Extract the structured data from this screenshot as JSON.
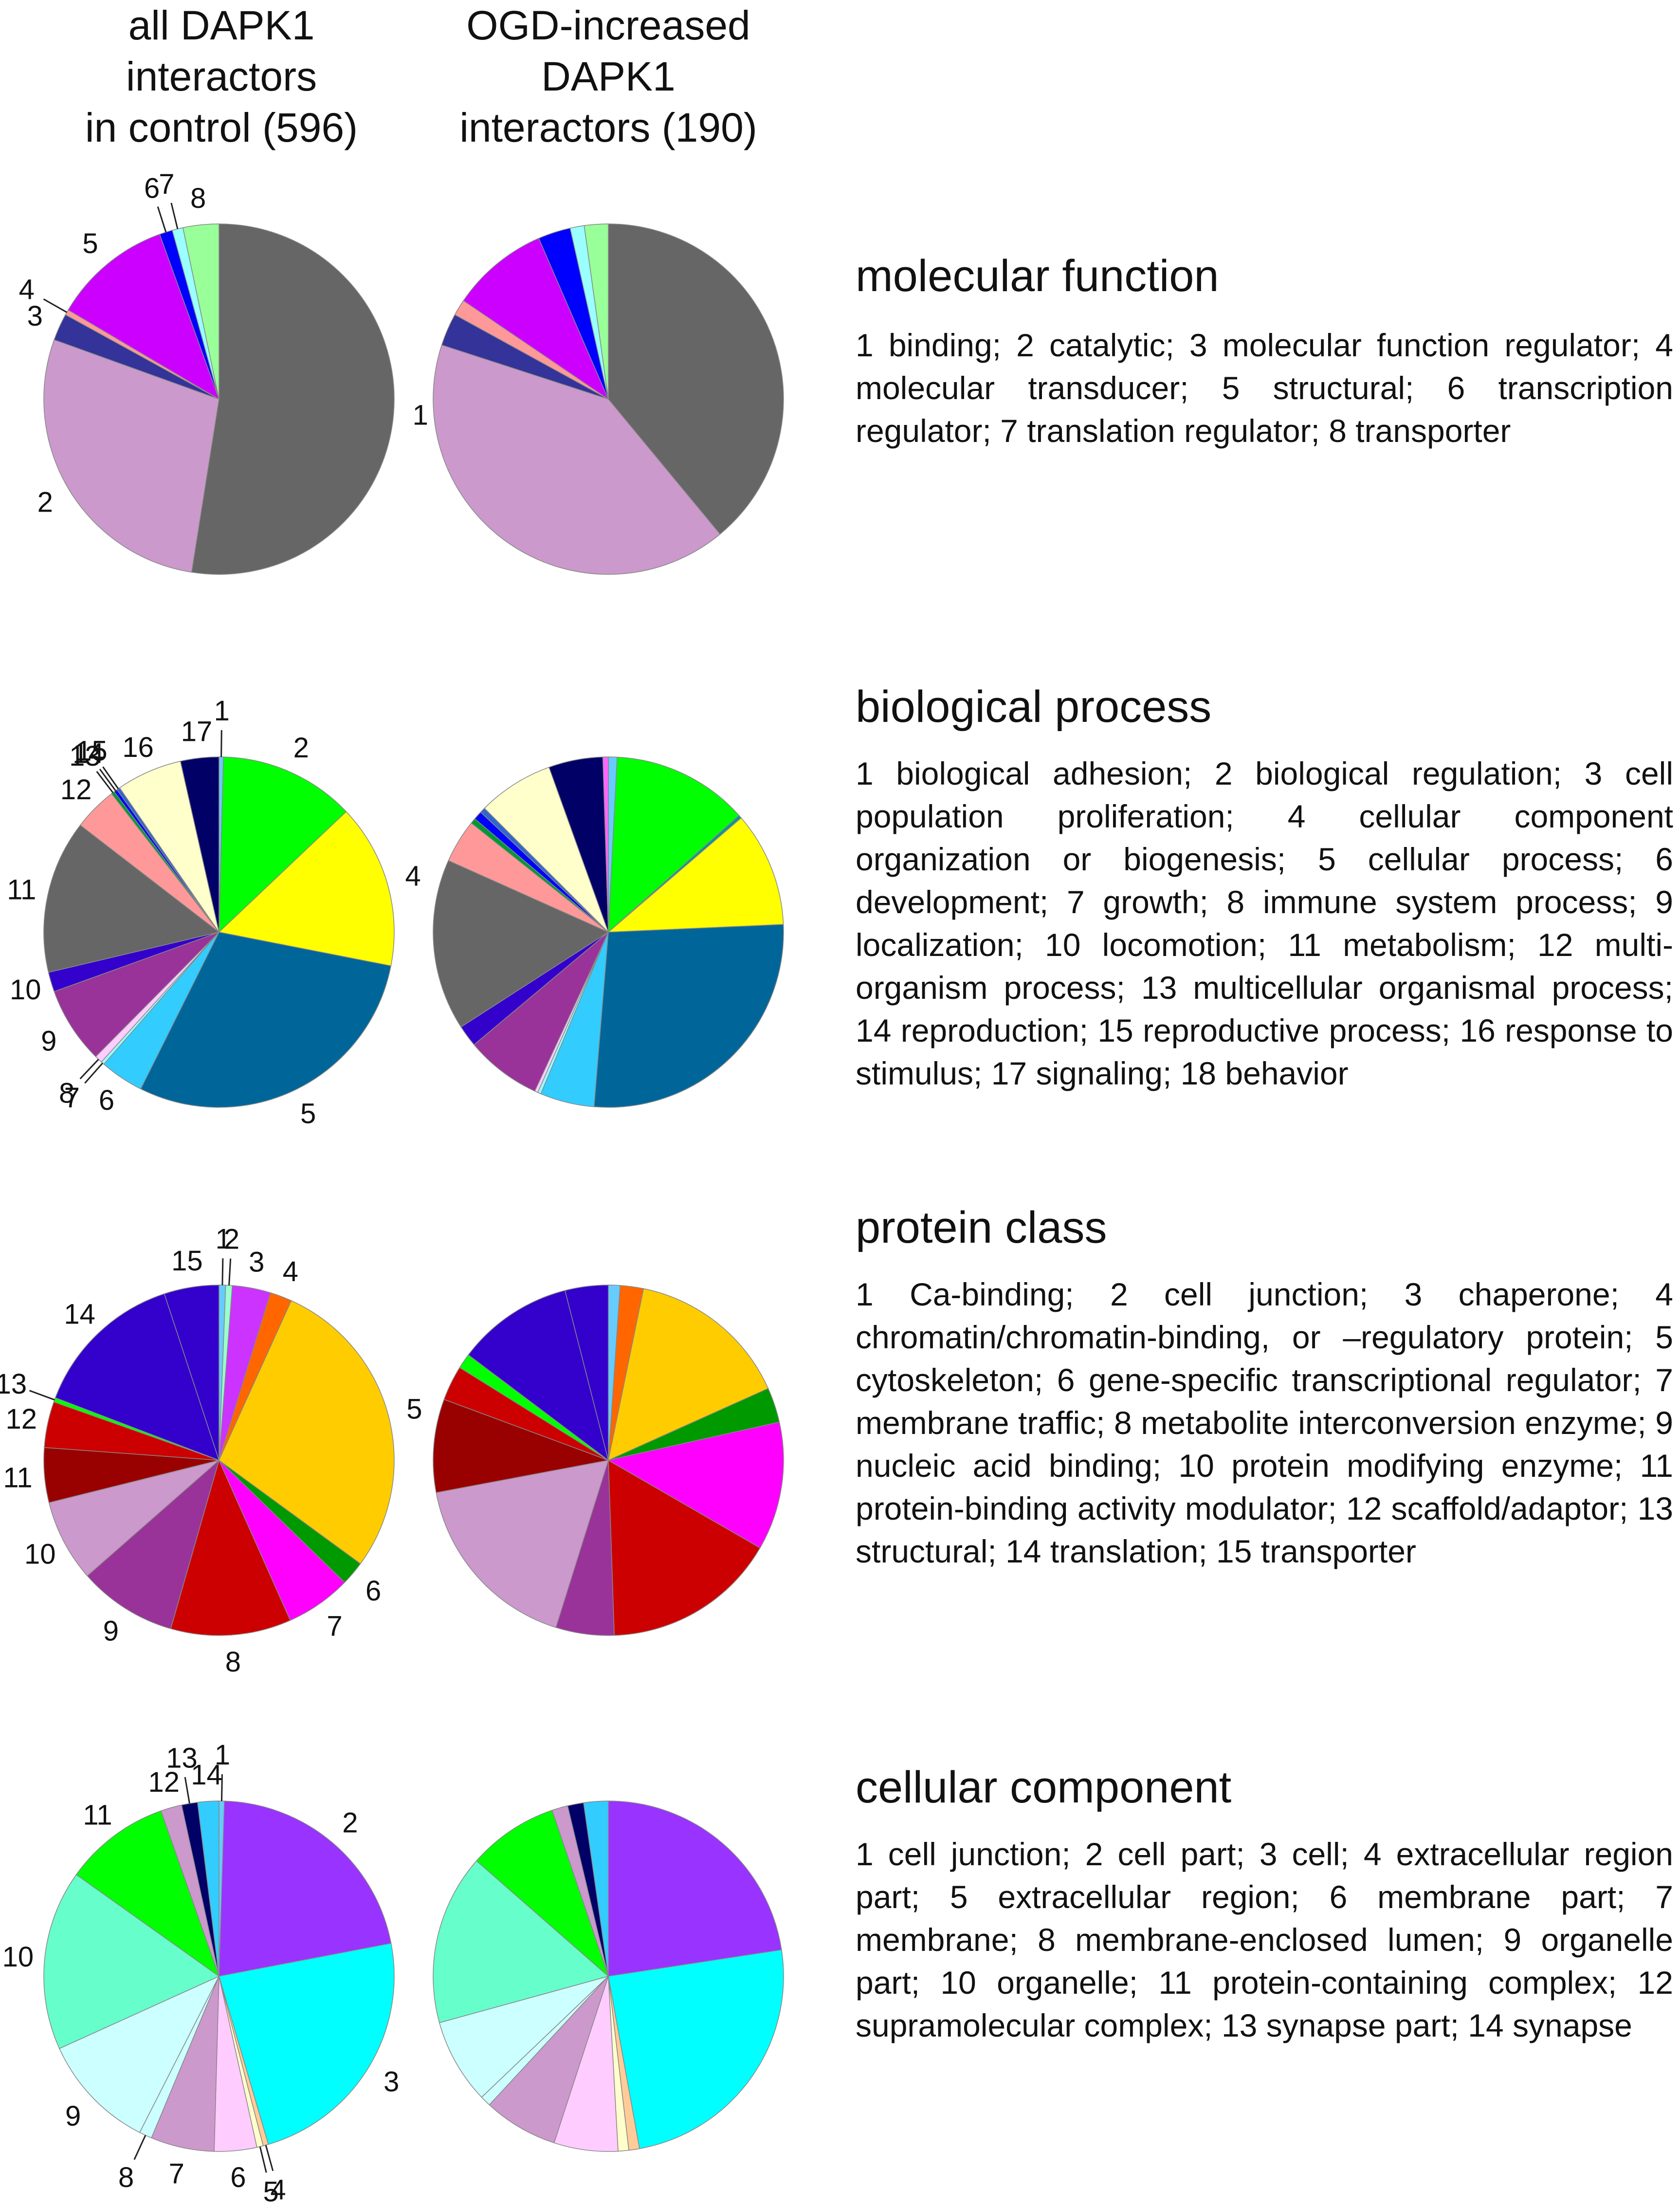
{
  "headers": {
    "control": [
      "all DAPK1",
      "interactors",
      "in control (596)"
    ],
    "ogd": [
      "OGD-increased",
      "DAPK1",
      "interactors (190)"
    ]
  },
  "chart_data": [
    {
      "type": "pie",
      "title": "molecular function",
      "legend": "1 binding; 2 catalytic; 3 molecular function regulator; 4 molecular transducer; 5 structural; 6 transcription regulator; 7 translation regulator; 8 transporter",
      "labels": [
        "1",
        "2",
        "3",
        "4",
        "5",
        "6",
        "7",
        "8"
      ],
      "colors": [
        "#666666",
        "#cc99cc",
        "#333399",
        "#ff9999",
        "#cc00ff",
        "#0000ff",
        "#99ffff",
        "#99ff99"
      ],
      "series": [
        {
          "name": "all DAPK1 interactors in control (596)",
          "values": [
            52.5,
            28,
            2.5,
            0.5,
            11,
            1.2,
            1,
            3.3
          ]
        },
        {
          "name": "OGD-increased DAPK1 interactors (190)",
          "values": [
            39,
            41,
            3,
            1.5,
            9,
            3,
            1.3,
            2.2
          ]
        }
      ]
    },
    {
      "type": "pie",
      "title": "biological process",
      "legend": "1 biological adhesion; 2 biological regulation; 3 cell population proliferation; 4 cellular component organization or biogenesis; 5 cellular process; 6 development; 7 growth; 8 immune system process; 9 localization; 10 locomotion; 11 metabolism; 12 multi-organism process; 13 multicellular organismal process; 14 reproduction; 15 reproductive process; 16 response to stimulus; 17 signaling; 18 behavior",
      "labels": [
        "1",
        "2",
        "3",
        "4",
        "5",
        "6",
        "7",
        "8",
        "9",
        "10",
        "11",
        "12",
        "13",
        "14",
        "15",
        "16",
        "17",
        "18"
      ],
      "colors": [
        "#66ccff",
        "#00ff00",
        "#009999",
        "#ffff00",
        "#006699",
        "#33ccff",
        "#99ffff",
        "#ffccff",
        "#993399",
        "#3300cc",
        "#666666",
        "#ff9999",
        "#009933",
        "#0000ff",
        "#3366cc",
        "#ffffcc",
        "#000066",
        "#ff66ff"
      ],
      "series": [
        {
          "name": "all DAPK1 interactors in control (596)",
          "values": [
            0.4,
            12.4,
            0,
            15,
            29,
            4,
            0.3,
            0.7,
            7,
            1.8,
            14,
            4,
            0.3,
            0.3,
            0.3,
            6,
            3.5,
            0
          ]
        },
        {
          "name": "OGD-increased DAPK1 interactors (190)",
          "values": [
            0.8,
            12.6,
            0.3,
            10.6,
            27,
            5,
            0.3,
            0.3,
            7,
            2,
            15.8,
            4,
            0.5,
            0.8,
            0.5,
            7,
            5,
            0.5
          ]
        }
      ]
    },
    {
      "type": "pie",
      "title": "protein class",
      "legend": "1 Ca-binding; 2 cell junction; 3 chaperone; 4 chromatin/chromatin-binding, or –regulatory protein; 5 cytoskeleton; 6 gene-specific transcriptional regulator; 7 membrane traffic; 8 metabolite interconversion enzyme; 9 nucleic acid binding; 10 protein modifying enzyme; 11 protein-binding activity modulator; 12 scaffold/adaptor; 13 structural; 14 translation; 15 transporter",
      "labels": [
        "1",
        "2",
        "3",
        "4",
        "5",
        "6",
        "7",
        "8",
        "9",
        "10",
        "11",
        "12",
        "13",
        "14",
        "15"
      ],
      "colors": [
        "#66ccff",
        "#99ffcc",
        "#cc33ff",
        "#ff6600",
        "#ffcc00",
        "#009900",
        "#ff00ff",
        "#cc0000",
        "#993399",
        "#cc99cc",
        "#990000",
        "#cc0000",
        "#00ff00",
        "#3300cc",
        "#3300cc"
      ],
      "series": [
        {
          "name": "all DAPK1 interactors in control (596)",
          "values": [
            0.6,
            0.6,
            3.5,
            2,
            28,
            2.2,
            6,
            11,
            9,
            7.5,
            5,
            4.2,
            0.4,
            14,
            5
          ]
        },
        {
          "name": "OGD-increased DAPK1 interactors (190)",
          "values": [
            1,
            0,
            0,
            2,
            14,
            3,
            11,
            15,
            5,
            16,
            8,
            3,
            1.3,
            10,
            3.7
          ]
        }
      ]
    },
    {
      "type": "pie",
      "title": "cellular component",
      "legend": "1 cell junction; 2 cell part; 3 cell; 4 extracellular region part; 5 extracellular region; 6 membrane part; 7 membrane; 8 membrane-enclosed lumen; 9 organelle part; 10 organelle; 11 protein-containing complex; 12 supramolecular complex; 13 synapse part; 14 synapse",
      "labels": [
        "1",
        "2",
        "3",
        "4",
        "5",
        "6",
        "7",
        "8",
        "9",
        "10",
        "11",
        "12",
        "13",
        "14"
      ],
      "colors": [
        "#66ccff",
        "#9933ff",
        "#00ffff",
        "#ffcc99",
        "#ffffcc",
        "#ffccff",
        "#cc99cc",
        "#ccffff",
        "#ccffff",
        "#66ffcc",
        "#00ff00",
        "#cc99cc",
        "#000066",
        "#33ccff"
      ],
      "series": [
        {
          "name": "all DAPK1 interactors in control (596)",
          "values": [
            0.5,
            22,
            24,
            0.5,
            0.6,
            4,
            6,
            1.2,
            11,
            17,
            10,
            2,
            1.5,
            2
          ]
        },
        {
          "name": "OGD-increased DAPK1 interactors (190)",
          "values": [
            0,
            23,
            25,
            1,
            1,
            6,
            7,
            1,
            8,
            16,
            8.5,
            1.5,
            1.5,
            2.3
          ]
        }
      ]
    }
  ]
}
